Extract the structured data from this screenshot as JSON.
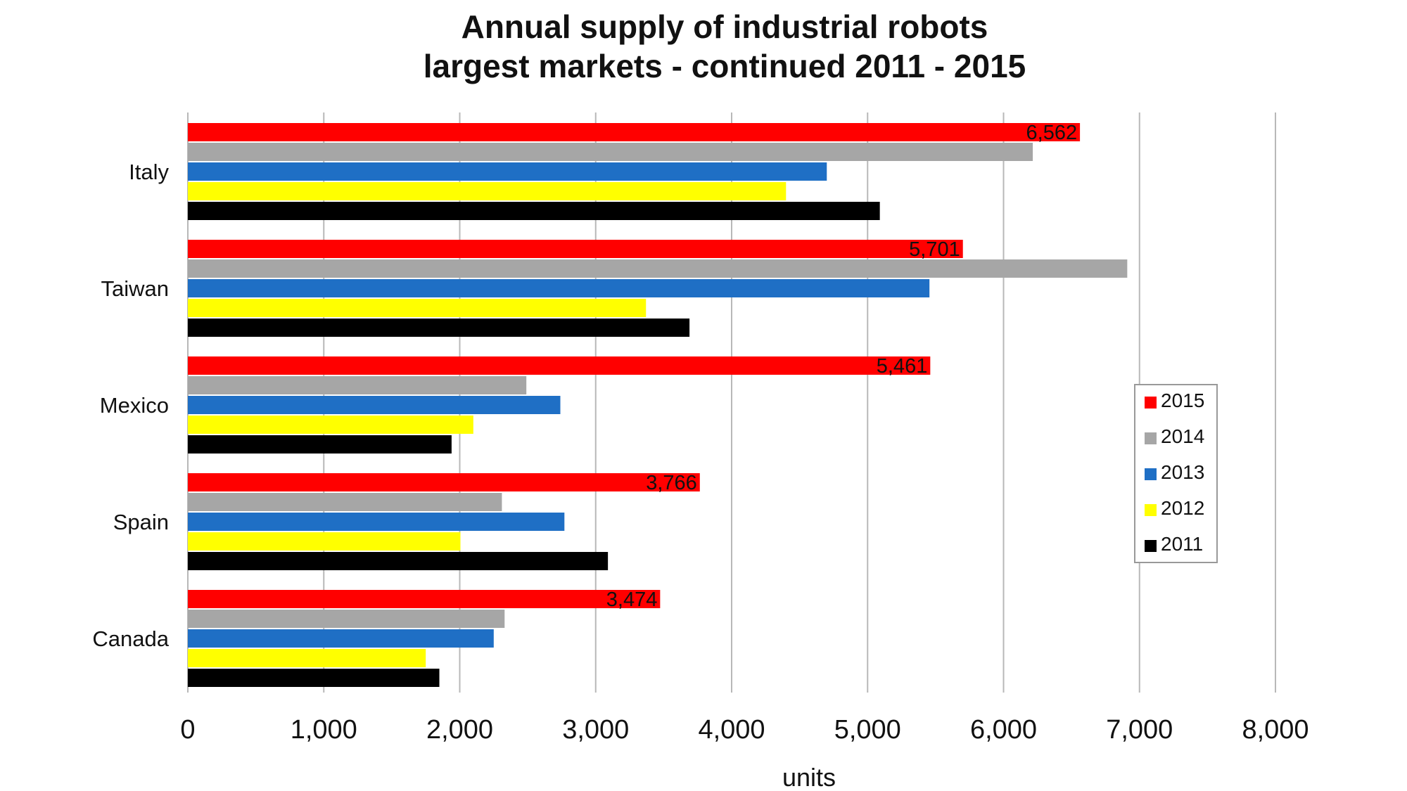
{
  "chart_data": {
    "type": "bar",
    "orientation": "horizontal",
    "title_lines": [
      "Annual supply of industrial robots",
      "largest markets - continued 2011 - 2015"
    ],
    "xlabel": "units",
    "ylabel": "",
    "xlim": [
      0,
      8000
    ],
    "xticks": [
      0,
      1000,
      2000,
      3000,
      4000,
      5000,
      6000,
      7000,
      8000
    ],
    "xtick_labels": [
      "0",
      "1,000",
      "2,000",
      "3,000",
      "4,000",
      "5,000",
      "6,000",
      "7,000",
      "8,000"
    ],
    "grid": "vertical",
    "legend_position": "right",
    "categories": [
      "Italy",
      "Taiwan",
      "Mexico",
      "Spain",
      "Canada"
    ],
    "series": [
      {
        "name": "2015",
        "color": "#ff0000",
        "values": [
          6562,
          5701,
          5461,
          3766,
          3474
        ],
        "data_labels": [
          "6,562",
          "5,701",
          "5,461",
          "3,766",
          "3,474"
        ]
      },
      {
        "name": "2014",
        "color": "#a6a6a6",
        "values": [
          6215,
          6910,
          2490,
          2310,
          2330
        ]
      },
      {
        "name": "2013",
        "color": "#1f6fc5",
        "values": [
          4700,
          5455,
          2740,
          2770,
          2250
        ]
      },
      {
        "name": "2012",
        "color": "#ffff00",
        "values": [
          4400,
          3370,
          2100,
          2005,
          1750
        ]
      },
      {
        "name": "2011",
        "color": "#000000",
        "values": [
          5090,
          3690,
          1940,
          3090,
          1850
        ]
      }
    ]
  }
}
